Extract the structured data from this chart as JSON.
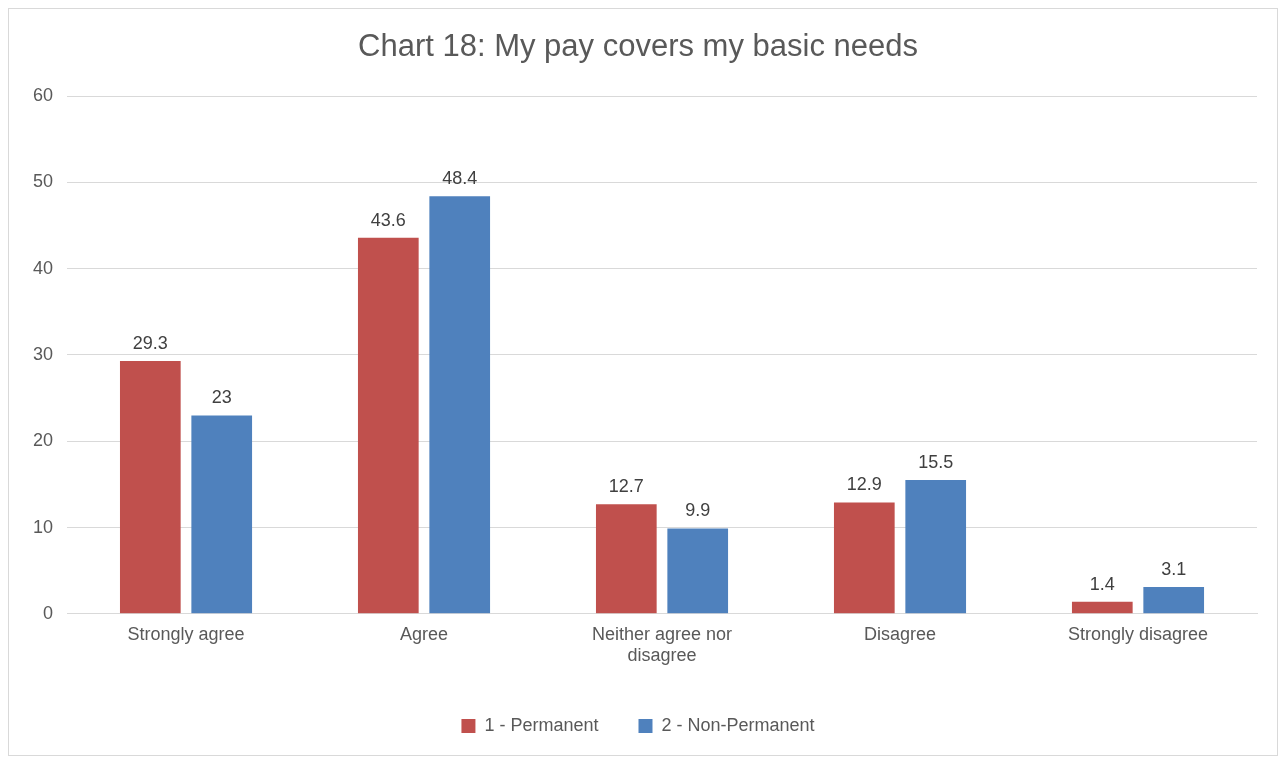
{
  "chart_data": {
    "type": "bar",
    "title": "Chart 18: My pay covers my basic needs",
    "categories": [
      "Strongly agree",
      "Agree",
      "Neither agree nor disagree",
      "Disagree",
      "Strongly disagree"
    ],
    "series": [
      {
        "name": "1 - Permanent",
        "color": "#c0504d",
        "values": [
          29.3,
          43.6,
          12.7,
          12.9,
          1.4
        ]
      },
      {
        "name": "2 - Non-Permanent",
        "color": "#4f81bd",
        "values": [
          23,
          48.4,
          9.9,
          15.5,
          3.1
        ]
      }
    ],
    "ylim": [
      0,
      60
    ],
    "yticks": [
      0,
      10,
      20,
      30,
      40,
      50,
      60
    ],
    "grid": "y",
    "legend": "bottom",
    "data_labels": true
  }
}
